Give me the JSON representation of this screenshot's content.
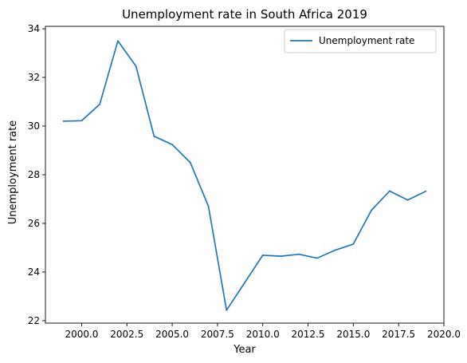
{
  "chart_data": {
    "type": "line",
    "title": "Unemployment rate in South Africa 2019",
    "xlabel": "Year",
    "ylabel": "Unemployment rate",
    "xlim": [
      1998.0,
      2020.0
    ],
    "ylim": [
      21.9,
      34.1
    ],
    "x_ticks": [
      2000.0,
      2002.5,
      2005.0,
      2007.5,
      2010.0,
      2012.5,
      2015.0,
      2017.5,
      2020.0
    ],
    "x_tick_labels": [
      "2000.0",
      "2002.5",
      "2005.0",
      "2007.5",
      "2010.0",
      "2012.5",
      "2015.0",
      "2017.5",
      "2020.0"
    ],
    "y_ticks": [
      22,
      24,
      26,
      28,
      30,
      32,
      34
    ],
    "y_tick_labels": [
      "22",
      "24",
      "26",
      "28",
      "30",
      "32",
      "34"
    ],
    "grid": false,
    "legend_position": "top-right",
    "color": "#1f77b4",
    "series": [
      {
        "name": "Unemployment rate",
        "x": [
          1999,
          2000,
          2001,
          2002,
          2003,
          2004,
          2005,
          2006,
          2007,
          2008,
          2009,
          2010,
          2011,
          2012,
          2013,
          2014,
          2015,
          2016,
          2017,
          2018,
          2019
        ],
        "values": [
          30.2,
          30.22,
          30.9,
          33.5,
          32.46,
          29.58,
          29.24,
          28.5,
          26.7,
          22.43,
          23.56,
          24.69,
          24.65,
          24.73,
          24.57,
          24.9,
          25.15,
          26.54,
          27.33,
          26.96,
          27.32
        ]
      }
    ]
  }
}
